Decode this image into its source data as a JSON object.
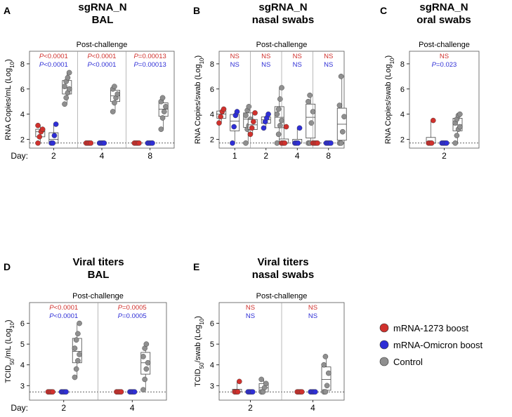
{
  "legend": [
    {
      "label": "mRNA-1273 boost",
      "color": "#d0312d"
    },
    {
      "label": "mRNA-Omicron boost",
      "color": "#2f2fd6"
    },
    {
      "label": "Control",
      "color": "#8f8f8f"
    }
  ],
  "colors": {
    "p_red": "#d0312d",
    "p_blue": "#2f2fd6",
    "box_stroke": "#444444",
    "frame": "#555555"
  },
  "chart_data": [
    {
      "panel": "A",
      "type": "scatter",
      "title_line1": "sgRNA_N",
      "title_line2": "BAL",
      "subtitle": "Post-challenge",
      "ylabel": "RNA Copies/mL (Log",
      "ylabel_sub": "10",
      "ylabel_end": ")",
      "ylim": [
        1.3,
        9
      ],
      "yticks": [
        2,
        4,
        6,
        8
      ],
      "lod": 1.7,
      "day_label": "Day:",
      "groups": [
        {
          "day": "2",
          "p_red": "<0.0001",
          "p_blue": "<0.0001",
          "series": [
            [
              1.7,
              2.2,
              2.6,
              2.8,
              3.1
            ],
            [
              1.7,
              1.7,
              2.3,
              3.2
            ],
            [
              4.8,
              5.3,
              5.7,
              6.0,
              6.2,
              6.6,
              6.9,
              7.3
            ]
          ]
        },
        {
          "day": "4",
          "p_red": "<0.0001",
          "p_blue": "<0.0001",
          "series": [
            [
              1.7,
              1.7,
              1.7,
              1.7
            ],
            [
              1.7,
              1.7,
              1.7,
              1.7
            ],
            [
              4.2,
              4.9,
              5.3,
              5.6,
              6.0,
              6.2
            ]
          ]
        },
        {
          "day": "8",
          "p_red": "=0.00013",
          "p_blue": "=0.00013",
          "series": [
            [
              1.7,
              1.7,
              1.7,
              1.7
            ],
            [
              1.7,
              1.7,
              1.7,
              1.7
            ],
            [
              2.8,
              3.7,
              4.2,
              4.6,
              5.0,
              5.3
            ]
          ]
        }
      ]
    },
    {
      "panel": "B",
      "type": "scatter",
      "title_line1": "sgRNA_N",
      "title_line2": "nasal swabs",
      "subtitle": "Post-challenge",
      "ylabel": "RNA Copies/swab (Log",
      "ylabel_sub": "10",
      "ylabel_end": ")",
      "ylim": [
        1.3,
        9
      ],
      "yticks": [
        2,
        4,
        6,
        8
      ],
      "lod": 1.7,
      "day_label": "",
      "groups": [
        {
          "day": "1",
          "p_red": "NS",
          "p_blue": "NS",
          "series": [
            [
              3.3,
              3.8,
              4.2,
              4.4
            ],
            [
              1.7,
              3.0,
              3.9,
              4.2
            ],
            [
              1.7,
              2.8,
              3.1,
              3.6,
              3.9,
              4.3,
              4.6
            ]
          ]
        },
        {
          "day": "2",
          "p_red": "NS",
          "p_blue": "NS",
          "series": [
            [
              2.4,
              2.9,
              3.4,
              4.1
            ],
            [
              2.9,
              3.4,
              3.7,
              4.0
            ],
            [
              1.7,
              2.4,
              3.1,
              3.5,
              4.0,
              4.4,
              5.2,
              6.1
            ]
          ]
        },
        {
          "day": "4",
          "p_red": "NS",
          "p_blue": "NS",
          "series": [
            [
              1.7,
              1.7,
              1.7,
              3.0
            ],
            [
              1.7,
              1.7,
              1.7,
              2.9
            ],
            [
              1.7,
              1.7,
              3.3,
              4.2,
              5.0,
              5.5
            ]
          ]
        },
        {
          "day": "8",
          "p_red": "NS",
          "p_blue": "NS",
          "series": [
            [
              1.7,
              1.7,
              1.7,
              1.7
            ],
            [
              1.7,
              1.7,
              1.7,
              1.7
            ],
            [
              1.7,
              1.7,
              2.6,
              3.8,
              4.7,
              7.0
            ]
          ]
        }
      ]
    },
    {
      "panel": "C",
      "type": "scatter",
      "title_line1": "sgRNA_N",
      "title_line2": "oral swabs",
      "subtitle": "Post-challenge",
      "ylabel": "RNA Copies/swab (Log",
      "ylabel_sub": "10",
      "ylabel_end": ")",
      "ylim": [
        1.3,
        9
      ],
      "yticks": [
        2,
        4,
        6,
        8
      ],
      "lod": 1.7,
      "day_label": "",
      "groups": [
        {
          "day": "2",
          "p_red": "NS",
          "p_blue": "=0.023",
          "series": [
            [
              1.7,
              1.7,
              1.7,
              3.5
            ],
            [
              1.7,
              1.7,
              1.7,
              1.7
            ],
            [
              1.7,
              2.3,
              2.8,
              3.0,
              3.3,
              3.6,
              3.9,
              4.0
            ]
          ]
        }
      ]
    },
    {
      "panel": "D",
      "type": "scatter",
      "title_line1": "Viral titers",
      "title_line2": "BAL",
      "subtitle": "Post-challenge",
      "ylabel": "TCID",
      "ylabel_sub": "50",
      "ylabel_end": "/mL (Log",
      "ylabel_sub2": "10",
      "ylabel_end2": ")",
      "ylim": [
        2.3,
        7.0
      ],
      "yticks": [
        3,
        4,
        5,
        6
      ],
      "lod": 2.7,
      "day_label": "Day:",
      "groups": [
        {
          "day": "2",
          "p_red": "<0.0001",
          "p_blue": "<0.0001",
          "series": [
            [
              2.7,
              2.7,
              2.7,
              2.7
            ],
            [
              2.7,
              2.7,
              2.7,
              2.7
            ],
            [
              3.4,
              3.8,
              4.2,
              4.5,
              4.8,
              5.2,
              5.5,
              6.0
            ]
          ]
        },
        {
          "day": "4",
          "p_red": "=0.0005",
          "p_blue": "=0.0005",
          "series": [
            [
              2.7,
              2.7,
              2.7,
              2.7
            ],
            [
              2.7,
              2.7,
              2.7,
              2.7
            ],
            [
              2.8,
              3.3,
              3.8,
              4.1,
              4.4,
              4.8,
              5.0
            ]
          ]
        }
      ]
    },
    {
      "panel": "E",
      "type": "scatter",
      "title_line1": "Viral titers",
      "title_line2": "nasal swabs",
      "subtitle": "Post-challenge",
      "ylabel": "TCID",
      "ylabel_sub": "50",
      "ylabel_end": "/swab (Log",
      "ylabel_sub2": "10",
      "ylabel_end2": ")",
      "ylim": [
        2.3,
        7.0
      ],
      "yticks": [
        3,
        4,
        5,
        6
      ],
      "lod": 2.7,
      "day_label": "",
      "groups": [
        {
          "day": "2",
          "p_red": "NS",
          "p_blue": "NS",
          "series": [
            [
              2.7,
              2.7,
              2.7,
              3.2
            ],
            [
              2.7,
              2.7,
              2.7,
              2.7
            ],
            [
              2.7,
              2.7,
              2.9,
              3.1,
              3.3
            ]
          ]
        },
        {
          "day": "4",
          "p_red": "NS",
          "p_blue": "NS",
          "series": [
            [
              2.7,
              2.7,
              2.7,
              2.7
            ],
            [
              2.7,
              2.7,
              2.7,
              2.7
            ],
            [
              2.7,
              2.7,
              3.0,
              3.6,
              4.0,
              4.4
            ]
          ]
        }
      ]
    }
  ]
}
